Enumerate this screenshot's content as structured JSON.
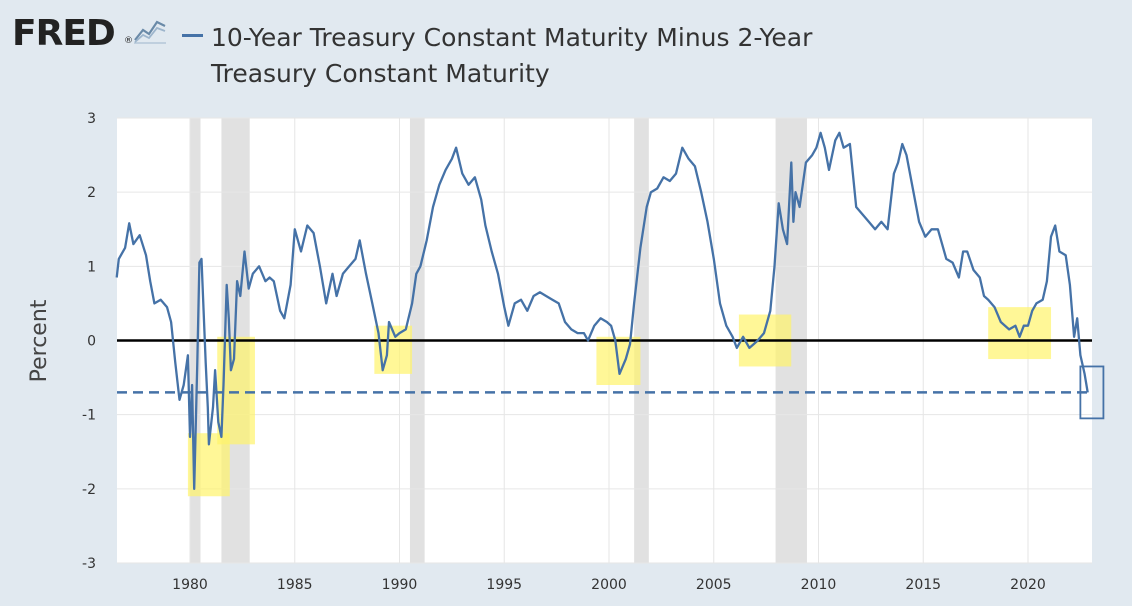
{
  "header": {
    "logo_text": "FRED",
    "logo_reg": "®",
    "logo_icon": "line-chart-icon",
    "series_title": "10-Year Treasury Constant Maturity Minus 2-Year Treasury Constant Maturity"
  },
  "colors": {
    "series": "#4572a7",
    "recession": "#e1e1e1",
    "highlight": "#fff36b",
    "background": "#e1e9f0",
    "plot": "#ffffff",
    "zero_line": "#000000",
    "box": "#4572a7"
  },
  "chart_data": {
    "type": "line",
    "title": "10-Year Treasury Constant Maturity Minus 2-Year Treasury Constant Maturity",
    "xlabel": "",
    "ylabel": "Percent",
    "xlim": [
      1976.5,
      2022.9
    ],
    "ylim": [
      -3,
      3
    ],
    "x_ticks": [
      "1980",
      "1985",
      "1990",
      "1995",
      "2000",
      "2005",
      "2010",
      "2015",
      "2020"
    ],
    "y_ticks": [
      "3",
      "2",
      "1",
      "0",
      "-1",
      "-2",
      "-3"
    ],
    "grid": true,
    "series": [
      {
        "points": [
          [
            1976.5,
            0.85
          ],
          [
            1976.6,
            1.1
          ],
          [
            1976.9,
            1.25
          ],
          [
            1977.1,
            1.58
          ],
          [
            1977.3,
            1.3
          ],
          [
            1977.6,
            1.42
          ],
          [
            1977.9,
            1.15
          ],
          [
            1978.1,
            0.8
          ],
          [
            1978.3,
            0.5
          ],
          [
            1978.6,
            0.55
          ],
          [
            1978.9,
            0.45
          ],
          [
            1979.1,
            0.25
          ],
          [
            1979.3,
            -0.3
          ],
          [
            1979.5,
            -0.8
          ],
          [
            1979.7,
            -0.6
          ],
          [
            1979.9,
            -0.2
          ],
          [
            1980.0,
            -1.3
          ],
          [
            1980.1,
            -0.6
          ],
          [
            1980.2,
            -2.0
          ],
          [
            1980.35,
            -0.3
          ],
          [
            1980.45,
            1.05
          ],
          [
            1980.55,
            1.1
          ],
          [
            1980.65,
            0.4
          ],
          [
            1980.75,
            -0.3
          ],
          [
            1980.85,
            -0.9
          ],
          [
            1980.9,
            -1.4
          ],
          [
            1981.1,
            -0.9
          ],
          [
            1981.2,
            -0.4
          ],
          [
            1981.35,
            -1.1
          ],
          [
            1981.5,
            -1.3
          ],
          [
            1981.6,
            -0.6
          ],
          [
            1981.75,
            0.75
          ],
          [
            1981.85,
            0.3
          ],
          [
            1981.95,
            -0.4
          ],
          [
            1982.1,
            -0.25
          ],
          [
            1982.25,
            0.8
          ],
          [
            1982.4,
            0.6
          ],
          [
            1982.6,
            1.2
          ],
          [
            1982.8,
            0.7
          ],
          [
            1983.0,
            0.9
          ],
          [
            1983.3,
            1.0
          ],
          [
            1983.6,
            0.8
          ],
          [
            1983.8,
            0.85
          ],
          [
            1984.0,
            0.8
          ],
          [
            1984.3,
            0.4
          ],
          [
            1984.5,
            0.3
          ],
          [
            1984.8,
            0.75
          ],
          [
            1985.0,
            1.5
          ],
          [
            1985.3,
            1.2
          ],
          [
            1985.6,
            1.55
          ],
          [
            1985.9,
            1.45
          ],
          [
            1986.2,
            1.0
          ],
          [
            1986.5,
            0.5
          ],
          [
            1986.8,
            0.9
          ],
          [
            1987.0,
            0.6
          ],
          [
            1987.3,
            0.9
          ],
          [
            1987.6,
            1.0
          ],
          [
            1987.9,
            1.1
          ],
          [
            1988.1,
            1.35
          ],
          [
            1988.4,
            0.9
          ],
          [
            1988.7,
            0.5
          ],
          [
            1989.0,
            0.1
          ],
          [
            1989.2,
            -0.4
          ],
          [
            1989.4,
            -0.2
          ],
          [
            1989.5,
            0.25
          ],
          [
            1989.8,
            0.05
          ],
          [
            1990.0,
            0.1
          ],
          [
            1990.3,
            0.15
          ],
          [
            1990.6,
            0.5
          ],
          [
            1990.8,
            0.9
          ],
          [
            1991.0,
            1.0
          ],
          [
            1991.3,
            1.35
          ],
          [
            1991.6,
            1.8
          ],
          [
            1991.9,
            2.1
          ],
          [
            1992.2,
            2.3
          ],
          [
            1992.5,
            2.45
          ],
          [
            1992.7,
            2.6
          ],
          [
            1993.0,
            2.25
          ],
          [
            1993.3,
            2.1
          ],
          [
            1993.6,
            2.2
          ],
          [
            1993.9,
            1.9
          ],
          [
            1994.1,
            1.55
          ],
          [
            1994.4,
            1.2
          ],
          [
            1994.7,
            0.9
          ],
          [
            1995.0,
            0.45
          ],
          [
            1995.2,
            0.2
          ],
          [
            1995.5,
            0.5
          ],
          [
            1995.8,
            0.55
          ],
          [
            1996.1,
            0.4
          ],
          [
            1996.4,
            0.6
          ],
          [
            1996.7,
            0.65
          ],
          [
            1997.0,
            0.6
          ],
          [
            1997.3,
            0.55
          ],
          [
            1997.6,
            0.5
          ],
          [
            1997.9,
            0.25
          ],
          [
            1998.2,
            0.15
          ],
          [
            1998.5,
            0.1
          ],
          [
            1998.8,
            0.1
          ],
          [
            1999.0,
            0.0
          ],
          [
            1999.3,
            0.2
          ],
          [
            1999.6,
            0.3
          ],
          [
            1999.9,
            0.25
          ],
          [
            2000.1,
            0.2
          ],
          [
            2000.3,
            0.0
          ],
          [
            2000.5,
            -0.45
          ],
          [
            2000.8,
            -0.25
          ],
          [
            2001.0,
            -0.05
          ],
          [
            2001.2,
            0.5
          ],
          [
            2001.5,
            1.25
          ],
          [
            2001.8,
            1.8
          ],
          [
            2002.0,
            2.0
          ],
          [
            2002.3,
            2.05
          ],
          [
            2002.6,
            2.2
          ],
          [
            2002.9,
            2.15
          ],
          [
            2003.2,
            2.25
          ],
          [
            2003.5,
            2.6
          ],
          [
            2003.8,
            2.45
          ],
          [
            2004.1,
            2.35
          ],
          [
            2004.4,
            2.0
          ],
          [
            2004.7,
            1.6
          ],
          [
            2005.0,
            1.1
          ],
          [
            2005.3,
            0.5
          ],
          [
            2005.6,
            0.2
          ],
          [
            2005.9,
            0.05
          ],
          [
            2006.1,
            -0.1
          ],
          [
            2006.4,
            0.05
          ],
          [
            2006.7,
            -0.1
          ],
          [
            2006.9,
            -0.05
          ],
          [
            2007.1,
            0.0
          ],
          [
            2007.4,
            0.1
          ],
          [
            2007.7,
            0.4
          ],
          [
            2007.9,
            1.0
          ],
          [
            2008.1,
            1.85
          ],
          [
            2008.3,
            1.5
          ],
          [
            2008.5,
            1.3
          ],
          [
            2008.7,
            2.4
          ],
          [
            2008.8,
            1.6
          ],
          [
            2008.9,
            2.0
          ],
          [
            2009.1,
            1.8
          ],
          [
            2009.4,
            2.4
          ],
          [
            2009.7,
            2.5
          ],
          [
            2009.9,
            2.6
          ],
          [
            2010.1,
            2.8
          ],
          [
            2010.3,
            2.6
          ],
          [
            2010.5,
            2.3
          ],
          [
            2010.8,
            2.7
          ],
          [
            2011.0,
            2.8
          ],
          [
            2011.2,
            2.6
          ],
          [
            2011.5,
            2.65
          ],
          [
            2011.8,
            1.8
          ],
          [
            2012.1,
            1.7
          ],
          [
            2012.4,
            1.6
          ],
          [
            2012.7,
            1.5
          ],
          [
            2013.0,
            1.6
          ],
          [
            2013.3,
            1.5
          ],
          [
            2013.6,
            2.25
          ],
          [
            2013.8,
            2.4
          ],
          [
            2014.0,
            2.65
          ],
          [
            2014.2,
            2.5
          ],
          [
            2014.5,
            2.05
          ],
          [
            2014.8,
            1.6
          ],
          [
            2015.1,
            1.4
          ],
          [
            2015.4,
            1.5
          ],
          [
            2015.7,
            1.5
          ],
          [
            2015.9,
            1.3
          ],
          [
            2016.1,
            1.1
          ],
          [
            2016.4,
            1.05
          ],
          [
            2016.7,
            0.85
          ],
          [
            2016.9,
            1.2
          ],
          [
            2017.1,
            1.2
          ],
          [
            2017.4,
            0.95
          ],
          [
            2017.7,
            0.85
          ],
          [
            2017.9,
            0.6
          ],
          [
            2018.1,
            0.55
          ],
          [
            2018.4,
            0.45
          ],
          [
            2018.7,
            0.25
          ],
          [
            2018.9,
            0.2
          ],
          [
            2019.1,
            0.15
          ],
          [
            2019.4,
            0.2
          ],
          [
            2019.6,
            0.05
          ],
          [
            2019.8,
            0.2
          ],
          [
            2020.0,
            0.2
          ],
          [
            2020.2,
            0.4
          ],
          [
            2020.4,
            0.5
          ],
          [
            2020.7,
            0.55
          ],
          [
            2020.9,
            0.8
          ],
          [
            2021.1,
            1.4
          ],
          [
            2021.3,
            1.55
          ],
          [
            2021.5,
            1.2
          ],
          [
            2021.8,
            1.15
          ],
          [
            2022.0,
            0.75
          ],
          [
            2022.2,
            0.05
          ],
          [
            2022.35,
            0.3
          ],
          [
            2022.5,
            -0.2
          ],
          [
            2022.7,
            -0.45
          ],
          [
            2022.85,
            -0.7
          ]
        ]
      }
    ],
    "recessions": [
      [
        1980.0,
        1980.5
      ],
      [
        1981.5,
        1982.85
      ],
      [
        1990.5,
        1991.2
      ],
      [
        2001.2,
        2001.9
      ],
      [
        2007.95,
        2009.45
      ]
    ],
    "highlights": [
      [
        1979.9,
        1981.9,
        -2.1,
        -1.25
      ],
      [
        1981.3,
        1983.1,
        -1.4,
        0.05
      ],
      [
        1988.8,
        1990.6,
        -0.45,
        0.2
      ],
      [
        1999.4,
        2001.5,
        -0.6,
        0.05
      ],
      [
        2006.2,
        2008.7,
        -0.35,
        0.35
      ],
      [
        2018.1,
        2021.1,
        -0.25,
        0.45
      ]
    ],
    "reference_line": {
      "y": -0.7,
      "style": "dashed"
    },
    "zero_line": {
      "y": 0
    },
    "callout_box": [
      2022.5,
      2023.6,
      -1.05,
      -0.35
    ]
  }
}
